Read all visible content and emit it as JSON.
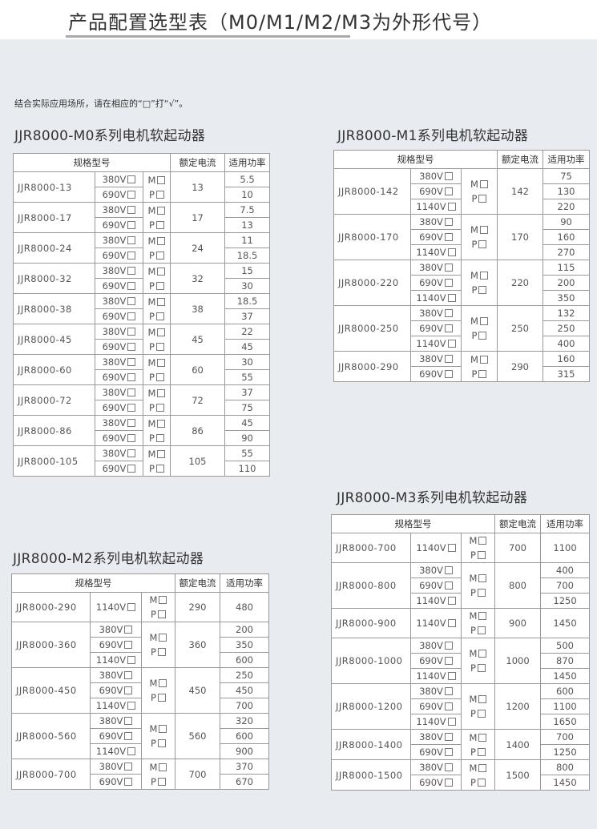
{
  "title": "产品配置选型表（M0/M1/M2/M3为外形代号）",
  "note": "结合实际应用场所，请在相应的“□”打“√”。",
  "headers": {
    "spec": "规格型号",
    "current": "额定电流",
    "power": "适用功率"
  },
  "mp": [
    "M",
    "P"
  ],
  "tables": [
    {
      "id": "m0",
      "title": "JJR8000-M0系列电机软起动器",
      "groups": [
        {
          "model": "JJR8000-13",
          "volts": [
            "380V",
            "690V"
          ],
          "current": "13",
          "powers": [
            "5.5",
            "10"
          ]
        },
        {
          "model": "JJR8000-17",
          "volts": [
            "380V",
            "690V"
          ],
          "current": "17",
          "powers": [
            "7.5",
            "13"
          ]
        },
        {
          "model": "JJR8000-24",
          "volts": [
            "380V",
            "690V"
          ],
          "current": "24",
          "powers": [
            "11",
            "18.5"
          ]
        },
        {
          "model": "JJR8000-32",
          "volts": [
            "380V",
            "690V"
          ],
          "current": "32",
          "powers": [
            "15",
            "30"
          ]
        },
        {
          "model": "JJR8000-38",
          "volts": [
            "380V",
            "690V"
          ],
          "current": "38",
          "powers": [
            "18.5",
            "37"
          ]
        },
        {
          "model": "JJR8000-45",
          "volts": [
            "380V",
            "690V"
          ],
          "current": "45",
          "powers": [
            "22",
            "45"
          ]
        },
        {
          "model": "JJR8000-60",
          "volts": [
            "380V",
            "690V"
          ],
          "current": "60",
          "powers": [
            "30",
            "55"
          ]
        },
        {
          "model": "JJR8000-72",
          "volts": [
            "380V",
            "690V"
          ],
          "current": "72",
          "powers": [
            "37",
            "75"
          ]
        },
        {
          "model": "JJR8000-86",
          "volts": [
            "380V",
            "690V"
          ],
          "current": "86",
          "powers": [
            "45",
            "90"
          ]
        },
        {
          "model": "JJR8000-105",
          "volts": [
            "380V",
            "690V"
          ],
          "current": "105",
          "powers": [
            "55",
            "110"
          ]
        }
      ]
    },
    {
      "id": "m1",
      "title": "JJR8000-M1系列电机软起动器",
      "groups": [
        {
          "model": "JJR8000-142",
          "volts": [
            "380V",
            "690V",
            "1140V"
          ],
          "current": "142",
          "powers": [
            "75",
            "130",
            "220"
          ]
        },
        {
          "model": "JJR8000-170",
          "volts": [
            "380V",
            "690V",
            "1140V"
          ],
          "current": "170",
          "powers": [
            "90",
            "160",
            "270"
          ]
        },
        {
          "model": "JJR8000-220",
          "volts": [
            "380V",
            "690V",
            "1140V"
          ],
          "current": "220",
          "powers": [
            "115",
            "200",
            "350"
          ]
        },
        {
          "model": "JJR8000-250",
          "volts": [
            "380V",
            "690V",
            "1140V"
          ],
          "current": "250",
          "powers": [
            "132",
            "250",
            "400"
          ]
        },
        {
          "model": "JJR8000-290",
          "volts": [
            "380V",
            "690V"
          ],
          "current": "290",
          "powers": [
            "160",
            "315"
          ]
        }
      ]
    },
    {
      "id": "m2",
      "title": "JJR8000-M2系列电机软起动器",
      "groups": [
        {
          "model": "JJR8000-290",
          "volts": [
            "1140V"
          ],
          "current": "290",
          "powers": [
            "480"
          ]
        },
        {
          "model": "JJR8000-360",
          "volts": [
            "380V",
            "690V",
            "1140V"
          ],
          "current": "360",
          "powers": [
            "200",
            "350",
            "600"
          ]
        },
        {
          "model": "JJR8000-450",
          "volts": [
            "380V",
            "690V",
            "1140V"
          ],
          "current": "450",
          "powers": [
            "250",
            "450",
            "700"
          ]
        },
        {
          "model": "JJR8000-560",
          "volts": [
            "380V",
            "690V",
            "1140V"
          ],
          "current": "560",
          "powers": [
            "320",
            "600",
            "900"
          ]
        },
        {
          "model": "JJR8000-700",
          "volts": [
            "380V",
            "690V"
          ],
          "current": "700",
          "powers": [
            "370",
            "670"
          ]
        }
      ]
    },
    {
      "id": "m3",
      "title": "JJR8000-M3系列电机软起动器",
      "groups": [
        {
          "model": "JJR8000-700",
          "volts": [
            "1140V"
          ],
          "current": "700",
          "powers": [
            "1100"
          ]
        },
        {
          "model": "JJR8000-800",
          "volts": [
            "380V",
            "690V",
            "1140V"
          ],
          "current": "800",
          "powers": [
            "400",
            "700",
            "1250"
          ]
        },
        {
          "model": "JJR8000-900",
          "volts": [
            "1140V"
          ],
          "current": "900",
          "powers": [
            "1450"
          ]
        },
        {
          "model": "JJR8000-1000",
          "volts": [
            "380V",
            "690V",
            "1140V"
          ],
          "current": "1000",
          "powers": [
            "500",
            "870",
            "1450"
          ]
        },
        {
          "model": "JJR8000-1200",
          "volts": [
            "380V",
            "690V",
            "1140V"
          ],
          "current": "1200",
          "powers": [
            "600",
            "1100",
            "1650"
          ]
        },
        {
          "model": "JJR8000-1400",
          "volts": [
            "380V",
            "690V"
          ],
          "current": "1400",
          "powers": [
            "700",
            "1250"
          ]
        },
        {
          "model": "JJR8000-1500",
          "volts": [
            "380V",
            "690V"
          ],
          "current": "1500",
          "powers": [
            "800",
            "1450"
          ]
        }
      ]
    }
  ]
}
